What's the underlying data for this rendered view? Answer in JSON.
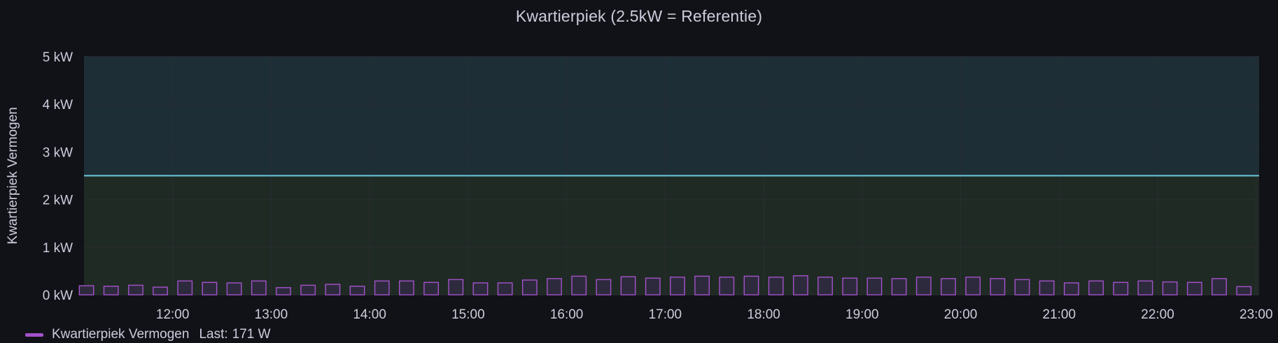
{
  "panel": {
    "title": "Kwartierpiek (2.5kW = Referentie)"
  },
  "legend": {
    "series_name": "Kwartierpiek Vermogen",
    "stat_label": "Last:",
    "stat_value": "171 W"
  },
  "colors": {
    "background": "#111217",
    "series": "#a352cc",
    "series_fill": "#2e2a3d",
    "threshold_line": "#6ccadc",
    "zone_above": "#1d2e37",
    "zone_below": "#202a24",
    "grid": "#2a2d33",
    "text": "#ccccdc"
  },
  "chart_data": {
    "type": "bar",
    "title": "Kwartierpiek (2.5kW = Referentie)",
    "ylabel": "Kwartierpiek Vermogen",
    "yunit": "W",
    "ylim": [
      0,
      5000
    ],
    "ytick_values": [
      0,
      1000,
      2000,
      3000,
      4000,
      5000
    ],
    "ytick_labels": [
      "0 kW",
      "1 kW",
      "2 kW",
      "3 kW",
      "4 kW",
      "5 kW"
    ],
    "x_range_hours": [
      11.1,
      23.03
    ],
    "xtick_values": [
      12,
      13,
      14,
      15,
      16,
      17,
      18,
      19,
      20,
      21,
      22,
      23
    ],
    "xtick_labels": [
      "12:00",
      "13:00",
      "14:00",
      "15:00",
      "16:00",
      "17:00",
      "18:00",
      "19:00",
      "20:00",
      "21:00",
      "22:00",
      "23:00"
    ],
    "threshold": 2500,
    "grid": true,
    "legend_position": "bottom-left",
    "series": [
      {
        "name": "Kwartierpiek Vermogen",
        "x_hours": [
          11.25,
          11.5,
          11.75,
          12.0,
          12.25,
          12.5,
          12.75,
          13.0,
          13.25,
          13.5,
          13.75,
          14.0,
          14.25,
          14.5,
          14.75,
          15.0,
          15.25,
          15.5,
          15.75,
          16.0,
          16.25,
          16.5,
          16.75,
          17.0,
          17.25,
          17.5,
          17.75,
          18.0,
          18.25,
          18.5,
          18.75,
          19.0,
          19.25,
          19.5,
          19.75,
          20.0,
          20.25,
          20.5,
          20.75,
          21.0,
          21.25,
          21.5,
          21.75,
          22.0,
          22.25,
          22.5,
          22.75,
          23.0
        ],
        "values": [
          190,
          180,
          200,
          160,
          290,
          260,
          250,
          290,
          150,
          200,
          220,
          180,
          290,
          290,
          260,
          320,
          250,
          250,
          310,
          340,
          390,
          320,
          380,
          350,
          370,
          390,
          370,
          390,
          370,
          400,
          370,
          350,
          350,
          340,
          370,
          340,
          370,
          340,
          320,
          290,
          250,
          290,
          260,
          290,
          270,
          260,
          340,
          171
        ]
      }
    ]
  }
}
